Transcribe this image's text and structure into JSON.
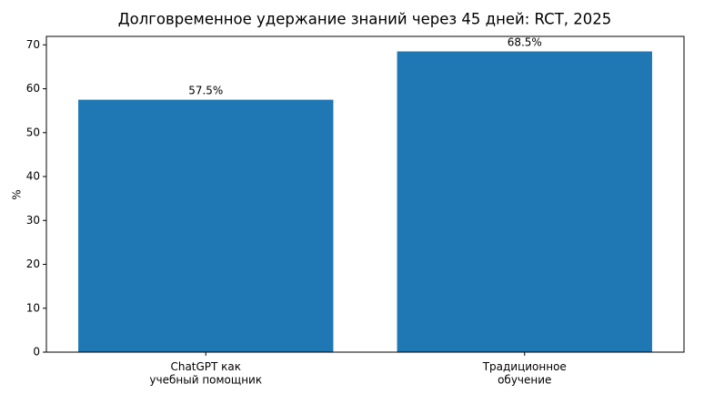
{
  "chart_data": {
    "type": "bar",
    "title": "Долговременное удержание знаний через 45 дней: RCT, 2025",
    "ylabel": "%",
    "categories": [
      "ChatGPT как\nучебный помощник",
      "Традиционное\nобучение"
    ],
    "values": [
      57.5,
      68.5
    ],
    "value_labels": [
      "57.5%",
      "68.5%"
    ],
    "color": "#1f77b4",
    "ylim": [
      0,
      71.925
    ],
    "yticks": [
      0,
      10,
      20,
      30,
      40,
      50,
      60,
      70
    ]
  }
}
